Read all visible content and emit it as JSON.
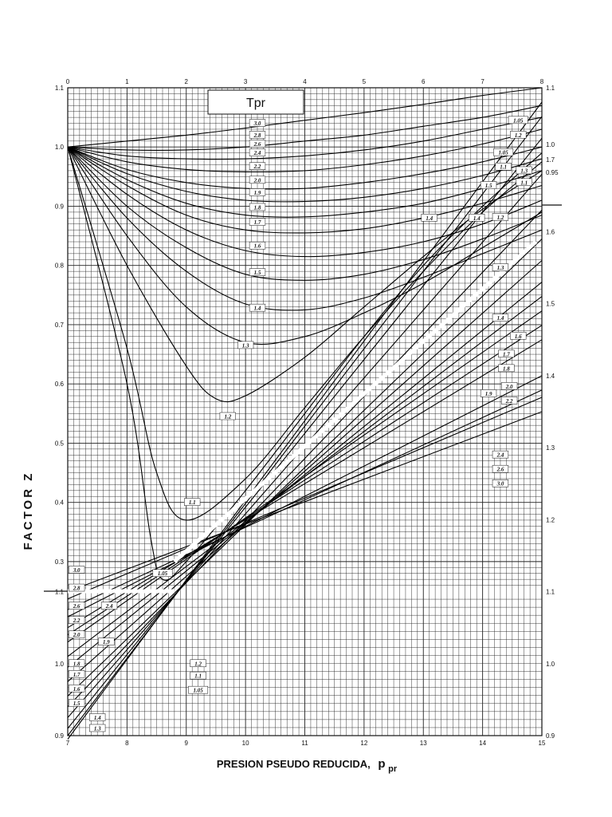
{
  "chart_data": {
    "type": "line",
    "ylabel": "FACTOR Z",
    "xlabel": "PRESION  PSEUDO REDUCIDA,",
    "xlabel_symbol": "p",
    "xlabel_sub": "pr",
    "legend_title": "Tpr",
    "upper": {
      "x_ticks": [
        "0",
        "1",
        "2",
        "3",
        "4",
        "5",
        "6",
        "7",
        "8"
      ],
      "xlim": [
        0,
        8
      ],
      "ylim": [
        0.25,
        1.1
      ],
      "y_ticks_left": [
        "0.3",
        "0.4",
        "0.5",
        "0.6",
        "0.7",
        "0.8",
        "0.9",
        "1.0",
        "1.1"
      ],
      "y_ticks_right": [
        "1.1",
        "1.0",
        "0.95"
      ],
      "series": [
        {
          "name": "3.0",
          "x": [
            0,
            1,
            2,
            3,
            4,
            5,
            6,
            7,
            8
          ],
          "y": [
            1.0,
            1.01,
            1.02,
            1.032,
            1.045,
            1.058,
            1.072,
            1.087,
            1.1
          ]
        },
        {
          "name": "2.6",
          "x": [
            0,
            1,
            2,
            3,
            4,
            5,
            6,
            7,
            8
          ],
          "y": [
            1.0,
            0.995,
            0.995,
            1.0,
            1.01,
            1.02,
            1.035,
            1.05,
            1.07
          ]
        },
        {
          "name": "2.4",
          "x": [
            0,
            1,
            2,
            3,
            4,
            5,
            6,
            7,
            8
          ],
          "y": [
            1.0,
            0.985,
            0.98,
            0.98,
            0.985,
            0.995,
            1.01,
            1.03,
            1.05
          ]
        },
        {
          "name": "2.2",
          "x": [
            0,
            1,
            2,
            3,
            4,
            5,
            6,
            7,
            8
          ],
          "y": [
            1.0,
            0.975,
            0.962,
            0.958,
            0.96,
            0.97,
            0.985,
            1.005,
            1.03
          ]
        },
        {
          "name": "2.0",
          "x": [
            0,
            1,
            2,
            3,
            4,
            5,
            6,
            7,
            8
          ],
          "y": [
            1.0,
            0.962,
            0.94,
            0.93,
            0.93,
            0.94,
            0.955,
            0.975,
            1.0
          ]
        },
        {
          "name": "1.9",
          "x": [
            0,
            1,
            2,
            3,
            4,
            5,
            6,
            7,
            8
          ],
          "y": [
            1.0,
            0.955,
            0.925,
            0.91,
            0.908,
            0.915,
            0.93,
            0.952,
            0.98
          ]
        },
        {
          "name": "1.8",
          "x": [
            0,
            1,
            2,
            3,
            4,
            5,
            6,
            7,
            8
          ],
          "y": [
            1.0,
            0.945,
            0.905,
            0.885,
            0.882,
            0.89,
            0.905,
            0.93,
            0.96
          ]
        },
        {
          "name": "1.7",
          "x": [
            0,
            1,
            2,
            3,
            4,
            5,
            6,
            7,
            8
          ],
          "y": [
            1.0,
            0.935,
            0.885,
            0.86,
            0.855,
            0.862,
            0.88,
            0.905,
            0.935
          ]
        },
        {
          "name": "1.6",
          "x": [
            0,
            1,
            2,
            3,
            4,
            5,
            6,
            7,
            8
          ],
          "y": [
            1.0,
            0.92,
            0.86,
            0.825,
            0.815,
            0.822,
            0.84,
            0.87,
            0.91
          ]
        },
        {
          "name": "1.5",
          "x": [
            0,
            1,
            2,
            3,
            4,
            5,
            6,
            7,
            8
          ],
          "y": [
            1.0,
            0.9,
            0.83,
            0.785,
            0.775,
            0.785,
            0.81,
            0.845,
            0.885
          ]
        },
        {
          "name": "1.4",
          "x": [
            0,
            1,
            2,
            3,
            4,
            5,
            6,
            7,
            8
          ],
          "y": [
            1.0,
            0.88,
            0.79,
            0.735,
            0.725,
            0.745,
            0.78,
            0.82,
            0.86
          ]
        },
        {
          "name": "1.3",
          "x": [
            0,
            1,
            2,
            3,
            4,
            5,
            6,
            7,
            8
          ],
          "y": [
            1.0,
            0.85,
            0.73,
            0.67,
            0.68,
            0.72,
            0.77,
            0.83,
            0.89
          ]
        },
        {
          "name": "1.2",
          "x": [
            0,
            1,
            2,
            2.5,
            3,
            4,
            5,
            6,
            7,
            8
          ],
          "y": [
            1.0,
            0.8,
            0.63,
            0.575,
            0.58,
            0.645,
            0.73,
            0.815,
            0.895,
            0.96
          ]
        },
        {
          "name": "1.1",
          "x": [
            0,
            1,
            1.5,
            2,
            3,
            4,
            5,
            6,
            7,
            8
          ],
          "y": [
            1.0,
            0.66,
            0.45,
            0.37,
            0.44,
            0.56,
            0.68,
            0.79,
            0.89,
            0.975
          ]
        },
        {
          "name": "1.05",
          "x": [
            0,
            1,
            1.4,
            1.6,
            2,
            3,
            4,
            5,
            6,
            7,
            8
          ],
          "y": [
            1.0,
            0.6,
            0.34,
            0.27,
            0.3,
            0.42,
            0.55,
            0.68,
            0.8,
            0.9,
            0.99
          ]
        }
      ],
      "labels": [
        {
          "text": "3.0",
          "x": 3.2,
          "y": 1.04
        },
        {
          "text": "2.8",
          "x": 3.2,
          "y": 1.02
        },
        {
          "text": "2.6",
          "x": 3.2,
          "y": 1.005
        },
        {
          "text": "2.4",
          "x": 3.2,
          "y": 0.99
        },
        {
          "text": "2.2",
          "x": 3.2,
          "y": 0.967
        },
        {
          "text": "2.0",
          "x": 3.2,
          "y": 0.944
        },
        {
          "text": "1.9",
          "x": 3.2,
          "y": 0.923
        },
        {
          "text": "1.8",
          "x": 3.2,
          "y": 0.898
        },
        {
          "text": "1.7",
          "x": 3.2,
          "y": 0.873
        },
        {
          "text": "1.6",
          "x": 3.2,
          "y": 0.833
        },
        {
          "text": "1.5",
          "x": 3.2,
          "y": 0.788
        },
        {
          "text": "1.4",
          "x": 3.2,
          "y": 0.728
        },
        {
          "text": "1.3",
          "x": 3.0,
          "y": 0.665
        },
        {
          "text": "1.2",
          "x": 2.7,
          "y": 0.545
        },
        {
          "text": "1.1",
          "x": 2.1,
          "y": 0.4
        },
        {
          "text": "1.05",
          "x": 1.6,
          "y": 0.28
        },
        {
          "text": "1.05",
          "x": 7.6,
          "y": 1.045
        },
        {
          "text": "1.2",
          "x": 7.6,
          "y": 1.02
        },
        {
          "text": "1.3",
          "x": 7.7,
          "y": 0.96
        },
        {
          "text": "1.1",
          "x": 7.7,
          "y": 0.94
        },
        {
          "text": "1.5",
          "x": 7.1,
          "y": 0.935
        },
        {
          "text": "1.4",
          "x": 6.9,
          "y": 0.88
        },
        {
          "text": "1.4",
          "x": 6.1,
          "y": 0.88
        }
      ]
    },
    "lower": {
      "x_ticks": [
        "7",
        "8",
        "9",
        "10",
        "11",
        "12",
        "13",
        "14",
        "15"
      ],
      "xlim": [
        7,
        15
      ],
      "ylim": [
        0.9,
        1.8
      ],
      "y_ticks_left": [
        "0.9",
        "1.0",
        "1.1"
      ],
      "y_ticks_right": [
        "0.9",
        "1.0",
        "1.1",
        "1.2",
        "1.3",
        "1.4",
        "1.5",
        "1.6",
        "1.7"
      ],
      "series": [
        {
          "name": "3.0",
          "x": [
            7,
            15
          ],
          "y": [
            1.1,
            1.35
          ]
        },
        {
          "name": "2.8",
          "x": [
            7,
            15
          ],
          "y": [
            1.09,
            1.37
          ]
        },
        {
          "name": "2.6",
          "x": [
            7,
            15
          ],
          "y": [
            1.075,
            1.38
          ]
        },
        {
          "name": "2.4",
          "x": [
            7,
            15
          ],
          "y": [
            1.065,
            1.4
          ]
        },
        {
          "name": "2.2",
          "x": [
            7,
            15
          ],
          "y": [
            1.05,
            1.45
          ]
        },
        {
          "name": "2.0",
          "x": [
            7,
            15
          ],
          "y": [
            1.04,
            1.47
          ]
        },
        {
          "name": "1.9",
          "x": [
            7,
            15
          ],
          "y": [
            1.03,
            1.49
          ]
        },
        {
          "name": "1.8",
          "x": [
            7,
            15
          ],
          "y": [
            1.01,
            1.51
          ]
        },
        {
          "name": "1.7",
          "x": [
            7,
            15
          ],
          "y": [
            0.995,
            1.53
          ]
        },
        {
          "name": "1.6",
          "x": [
            7,
            15
          ],
          "y": [
            0.975,
            1.56
          ]
        },
        {
          "name": "1.5",
          "x": [
            7,
            15
          ],
          "y": [
            0.955,
            1.59
          ]
        },
        {
          "name": "1.4",
          "x": [
            7,
            15
          ],
          "y": [
            0.94,
            1.63
          ]
        },
        {
          "name": "1.3",
          "x": [
            7,
            15
          ],
          "y": [
            0.925,
            1.68
          ]
        },
        {
          "name": "1.2",
          "x": [
            7,
            15
          ],
          "y": [
            0.91,
            1.73
          ]
        },
        {
          "name": "1.1",
          "x": [
            7,
            15
          ],
          "y": [
            0.9,
            1.76
          ]
        },
        {
          "name": "1.05",
          "x": [
            7,
            15
          ],
          "y": [
            0.895,
            1.78
          ]
        }
      ],
      "labels": [
        {
          "text": "3.0",
          "x": 7.15,
          "y": 1.13
        },
        {
          "text": "2.8",
          "x": 7.15,
          "y": 1.105
        },
        {
          "text": "2.6",
          "x": 7.15,
          "y": 1.08
        },
        {
          "text": "2.4",
          "x": 7.7,
          "y": 1.08
        },
        {
          "text": "2.2",
          "x": 7.15,
          "y": 1.06
        },
        {
          "text": "2.0",
          "x": 7.15,
          "y": 1.04
        },
        {
          "text": "1.9",
          "x": 7.65,
          "y": 1.03
        },
        {
          "text": "1.8",
          "x": 7.15,
          "y": 1.0
        },
        {
          "text": "1.7",
          "x": 7.15,
          "y": 0.985
        },
        {
          "text": "1.6",
          "x": 7.15,
          "y": 0.965
        },
        {
          "text": "1.5",
          "x": 7.15,
          "y": 0.945
        },
        {
          "text": "1.4",
          "x": 7.5,
          "y": 0.925
        },
        {
          "text": "1.3",
          "x": 7.5,
          "y": 0.91
        },
        {
          "text": "1.2",
          "x": 9.2,
          "y": 1.0
        },
        {
          "text": "1.1",
          "x": 9.2,
          "y": 0.983
        },
        {
          "text": "1.05",
          "x": 9.2,
          "y": 0.963
        },
        {
          "text": "1.05",
          "x": 14.35,
          "y": 1.71
        },
        {
          "text": "1.1",
          "x": 14.35,
          "y": 1.69
        },
        {
          "text": "1.2",
          "x": 14.3,
          "y": 1.62
        },
        {
          "text": "1.3",
          "x": 14.3,
          "y": 1.55
        },
        {
          "text": "1.4",
          "x": 14.3,
          "y": 1.48
        },
        {
          "text": "1.6",
          "x": 14.6,
          "y": 1.455
        },
        {
          "text": "1.7",
          "x": 14.4,
          "y": 1.43
        },
        {
          "text": "1.8",
          "x": 14.4,
          "y": 1.41
        },
        {
          "text": "1.9",
          "x": 14.1,
          "y": 1.375
        },
        {
          "text": "2.0",
          "x": 14.45,
          "y": 1.385
        },
        {
          "text": "2.2",
          "x": 14.45,
          "y": 1.365
        },
        {
          "text": "2.4",
          "x": 14.3,
          "y": 1.29
        },
        {
          "text": "2.6",
          "x": 14.3,
          "y": 1.27
        },
        {
          "text": "3.0",
          "x": 14.3,
          "y": 1.25
        }
      ]
    }
  }
}
